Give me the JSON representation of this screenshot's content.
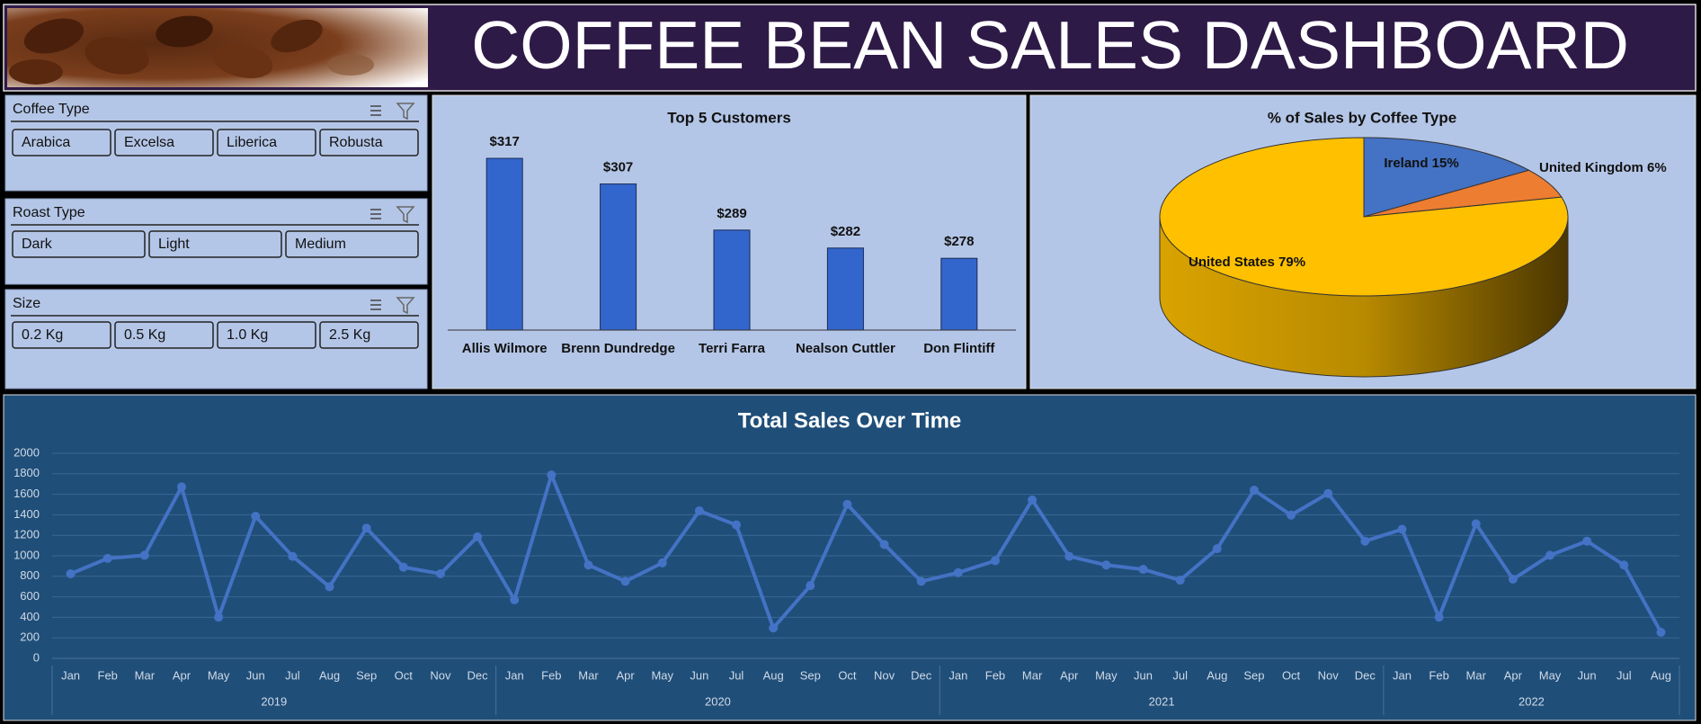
{
  "header": {
    "title": "COFFEE BEAN SALES DASHBOARD"
  },
  "slicers": [
    {
      "title": "Coffee Type",
      "items": [
        "Arabica",
        "Excelsa",
        "Liberica",
        "Robusta"
      ]
    },
    {
      "title": "Roast Type",
      "items": [
        "Dark",
        "Light",
        "Medium"
      ]
    },
    {
      "title": "Size",
      "items": [
        "0.2 Kg",
        "0.5 Kg",
        "1.0 Kg",
        "2.5 Kg"
      ]
    }
  ],
  "chart_data": [
    {
      "type": "bar",
      "title": "Top 5 Customers",
      "categories": [
        "Allis Wilmore",
        "Brenn Dundredge",
        "Terri Farra",
        "Nealson Cuttler",
        "Don Flintiff"
      ],
      "values": [
        317,
        307,
        289,
        282,
        278
      ],
      "value_labels": [
        "$317",
        "$307",
        "$289",
        "$282",
        "$278"
      ],
      "color": "#3366cc",
      "ylim": [
        250,
        330
      ]
    },
    {
      "type": "pie",
      "title": "% of Sales by Coffee Type",
      "values": [
        15,
        6,
        79
      ],
      "value_labels": [
        "Ireland 15%",
        "United Kingdom 6%",
        "United States 79%"
      ],
      "colors": [
        "#4472c4",
        "#ed7d31",
        "#ffc000"
      ]
    },
    {
      "type": "line",
      "title": "Total Sales Over Time",
      "color": "#4472c4",
      "ylim": [
        0,
        2000
      ],
      "yticks": [
        0,
        200,
        400,
        600,
        800,
        1000,
        1200,
        1400,
        1600,
        1800,
        2000
      ],
      "grid": true,
      "groups": [
        {
          "label": "2019",
          "categories": [
            "Jan",
            "Feb",
            "Mar",
            "Apr",
            "May",
            "Jun",
            "Jul",
            "Aug",
            "Sep",
            "Oct",
            "Nov",
            "Dec"
          ],
          "values": [
            825,
            975,
            1005,
            1672,
            402,
            1386,
            995,
            698,
            1270,
            889,
            825,
            1185
          ]
        },
        {
          "label": "2020",
          "categories": [
            "Jan",
            "Feb",
            "Mar",
            "Apr",
            "May",
            "Jun",
            "Jul",
            "Aug",
            "Sep",
            "Oct",
            "Nov",
            "Dec"
          ],
          "values": [
            571,
            1788,
            910,
            751,
            931,
            1439,
            1301,
            296,
            709,
            1502,
            1111,
            751
          ]
        },
        {
          "label": "2021",
          "categories": [
            "Jan",
            "Feb",
            "Mar",
            "Apr",
            "May",
            "Jun",
            "Jul",
            "Aug",
            "Sep",
            "Oct",
            "Nov",
            "Dec"
          ],
          "values": [
            836,
            952,
            1545,
            995,
            910,
            868,
            762,
            1069,
            1640,
            1397,
            1608,
            1143
          ]
        },
        {
          "label": "2022",
          "categories": [
            "Jan",
            "Feb",
            "Mar",
            "Apr",
            "May",
            "Jun",
            "Jul",
            "Aug"
          ],
          "values": [
            1259,
            402,
            1312,
            772,
            1005,
            1143,
            910,
            254
          ]
        }
      ]
    }
  ]
}
